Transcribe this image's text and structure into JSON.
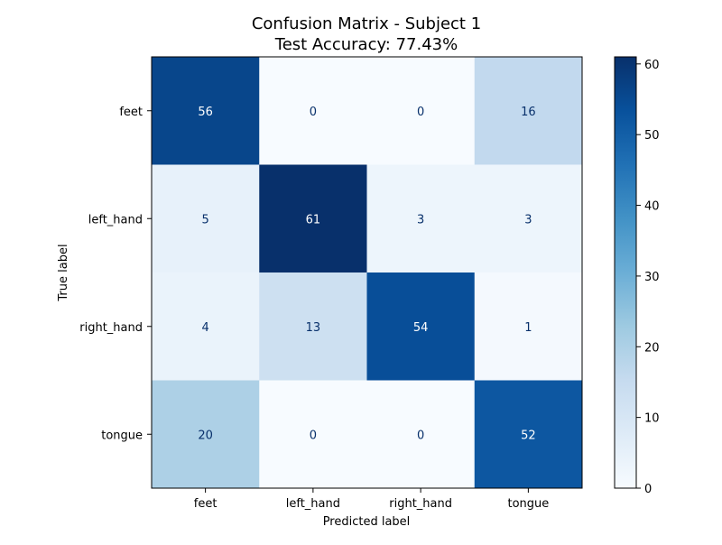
{
  "chart_data": {
    "type": "heatmap",
    "title": "Confusion Matrix - Subject 1",
    "subtitle": "Test Accuracy: 77.43%",
    "xlabel": "Predicted label",
    "ylabel": "True label",
    "x_categories": [
      "feet",
      "left_hand",
      "right_hand",
      "tongue"
    ],
    "y_categories": [
      "feet",
      "left_hand",
      "right_hand",
      "tongue"
    ],
    "values": [
      [
        56,
        0,
        0,
        16
      ],
      [
        5,
        61,
        3,
        3
      ],
      [
        4,
        13,
        54,
        1
      ],
      [
        20,
        0,
        0,
        52
      ]
    ],
    "colormap": "Blues",
    "vmin": 0,
    "vmax": 61,
    "colorbar_ticks": [
      0,
      10,
      20,
      30,
      40,
      50,
      60
    ],
    "colorbar_tick_labels": [
      "0",
      "10",
      "20",
      "30",
      "40",
      "50",
      "60"
    ],
    "text_color_dark": "#08306b",
    "text_color_light": "#ffffff"
  }
}
